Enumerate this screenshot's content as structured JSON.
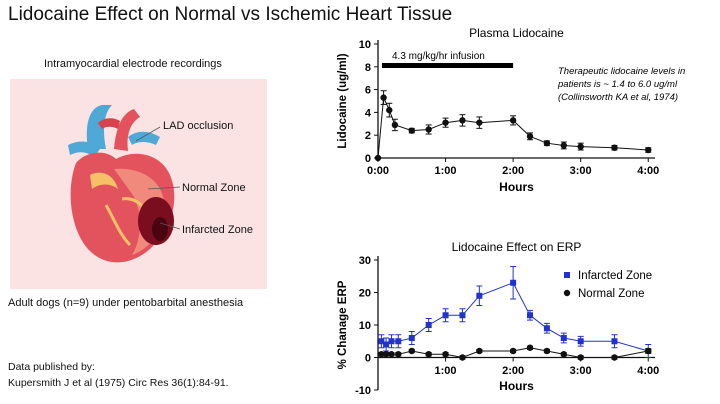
{
  "title": "Lidocaine Effect on Normal vs Ischemic Heart Tissue",
  "diagram": {
    "caption": "Intramyocardial electrode recordings",
    "labels": {
      "lad": "LAD occlusion",
      "normal": "Normal Zone",
      "infarcted": "Infarcted Zone"
    },
    "colors": {
      "panel": "#fbe3e3",
      "infarct": "#7a0d1e",
      "heart": "#e2535d",
      "vessel_blue": "#4fa9d6"
    }
  },
  "subjects_note": "Adult dogs (n=9) under pentobarbital anesthesia",
  "publication": {
    "line1": "Data published by:",
    "line2": "Kupersmith J et al (1975) Circ Res 36(1):84-91."
  },
  "chart_data": [
    {
      "type": "line",
      "title": "Plasma Lidocaine",
      "xlabel": "Hours",
      "ylabel": "Lidocaine (ug/ml)",
      "xlim": [
        0,
        4.1
      ],
      "ylim": [
        0,
        10
      ],
      "yticks": [
        "0",
        "2",
        "4",
        "6",
        "8",
        "10"
      ],
      "xticks": [
        "0:00",
        "1:00",
        "2:00",
        "3:00",
        "4:00"
      ],
      "annotation": "4.3 mg/kg/hr infusion",
      "infusion_bar": [
        0,
        2
      ],
      "note": [
        "Therapeutic lidocaine levels in",
        "patients is ~ 1.4 to 6.0 ug/ml",
        "(Collinsworth KA et al, 1974)"
      ],
      "series": [
        {
          "color": "#111111",
          "x": [
            0,
            0.083,
            0.167,
            0.25,
            0.5,
            0.75,
            1.0,
            1.25,
            1.5,
            2.0,
            2.25,
            2.5,
            2.75,
            3.0,
            3.5,
            4.0
          ],
          "y": [
            0,
            5.3,
            4.2,
            2.9,
            2.4,
            2.5,
            3.1,
            3.3,
            3.1,
            3.3,
            1.9,
            1.3,
            1.1,
            1.0,
            0.9,
            0.7
          ],
          "err": [
            0,
            0.6,
            0.6,
            0.5,
            0.2,
            0.4,
            0.4,
            0.5,
            0.5,
            0.4,
            0.3,
            0.2,
            0.3,
            0.3,
            0.2,
            0.2
          ]
        }
      ]
    },
    {
      "type": "line",
      "title": "Lidocaine Effect on ERP",
      "xlabel": "Hours",
      "ylabel": "% Chanage ERP",
      "xlim": [
        0,
        4.1
      ],
      "ylim": [
        -10,
        30
      ],
      "yticks": [
        "30",
        "20",
        "10",
        "0",
        "-10"
      ],
      "xticks": [
        "1:00",
        "2:00",
        "3:00",
        "4:00"
      ],
      "legend": "top-right",
      "series": [
        {
          "name": "Infarcted Zone",
          "color": "#2233cc",
          "x": [
            0.05,
            0.12,
            0.2,
            0.3,
            0.5,
            0.75,
            1.0,
            1.25,
            1.5,
            2.0,
            2.25,
            2.5,
            2.75,
            3.0,
            3.5,
            4.0
          ],
          "y": [
            5,
            4,
            5,
            5,
            6,
            10,
            13,
            13,
            19,
            23,
            13,
            9,
            6,
            5,
            5,
            2
          ],
          "err": [
            2,
            2,
            2,
            2,
            2,
            2,
            2,
            2,
            3,
            5,
            1.5,
            1.5,
            1.5,
            1.5,
            2,
            2
          ]
        },
        {
          "name": "Normal Zone",
          "color": "#111111",
          "x": [
            0.05,
            0.12,
            0.2,
            0.3,
            0.5,
            0.75,
            1.0,
            1.25,
            1.5,
            2.0,
            2.25,
            2.5,
            2.75,
            3.0,
            3.5,
            4.0
          ],
          "y": [
            1,
            1,
            1,
            1,
            2,
            1,
            1,
            0,
            2,
            2,
            3,
            2,
            1,
            0,
            0,
            2
          ],
          "err": [
            0.5,
            0.5,
            0.5,
            0.5,
            0.5,
            0.5,
            0.5,
            0.5,
            0.5,
            0.5,
            0.5,
            0.5,
            0.5,
            0.5,
            0.5,
            0.5
          ]
        }
      ]
    }
  ]
}
